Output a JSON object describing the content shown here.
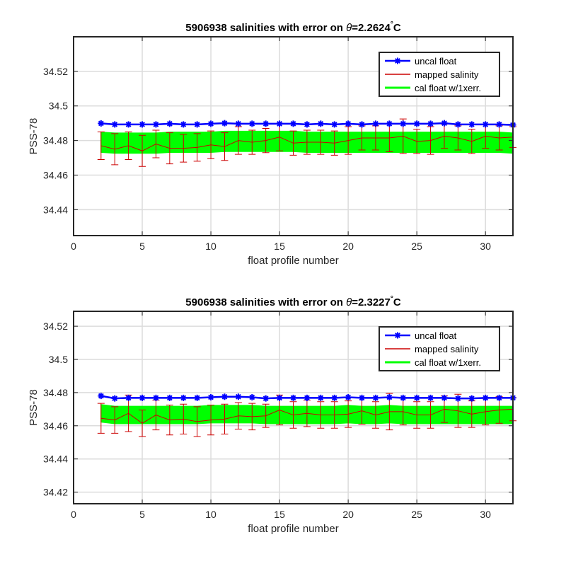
{
  "colors": {
    "uncal": "#0000ff",
    "mapped": "#cc0000",
    "calband": "#00ff00",
    "grid": "#dcdcdc",
    "axis": "#262626"
  },
  "chart_data": [
    {
      "type": "line",
      "title_prefix": "5906938 salinities with error on ",
      "title_theta": "θ",
      "title_value": "=2.2624",
      "title_unit": "C",
      "xlabel": "float profile number",
      "ylabel": "PSS-78",
      "xlim": [
        0,
        32
      ],
      "ylim": [
        34.425,
        34.54
      ],
      "xticks": [
        0,
        5,
        10,
        15,
        20,
        25,
        30
      ],
      "xtick_labels": [
        "0",
        "5",
        "10",
        "15",
        "20",
        "25",
        "30"
      ],
      "yticks": [
        34.44,
        34.46,
        34.48,
        34.5,
        34.52
      ],
      "ytick_labels": [
        "34.44",
        "34.46",
        "34.48",
        "34.5",
        "34.52"
      ],
      "grid": true,
      "legend_position": "top-right",
      "legend": [
        "uncal float",
        "mapped salinity",
        "cal float w/1xerr."
      ],
      "x": [
        2,
        3,
        4,
        5,
        6,
        7,
        8,
        9,
        10,
        11,
        12,
        13,
        14,
        15,
        16,
        17,
        18,
        19,
        20,
        21,
        22,
        23,
        24,
        25,
        26,
        27,
        28,
        29,
        30,
        31,
        32
      ],
      "series": [
        {
          "name": "uncal float",
          "values": [
            34.4899,
            34.4893,
            34.4893,
            34.4893,
            34.4893,
            34.4897,
            34.4893,
            34.4893,
            34.4897,
            34.49,
            34.4897,
            34.4897,
            34.4897,
            34.4897,
            34.4897,
            34.4893,
            34.4897,
            34.4893,
            34.4897,
            34.4893,
            34.4897,
            34.4897,
            34.4897,
            34.4897,
            34.4897,
            34.49,
            34.4893,
            34.4893,
            34.4893,
            34.4893,
            34.489
          ]
        },
        {
          "name": "mapped salinity",
          "values": [
            34.477,
            34.475,
            34.477,
            34.474,
            34.478,
            34.4755,
            34.4755,
            34.476,
            34.4775,
            34.4765,
            34.48,
            34.479,
            34.48,
            34.482,
            34.4785,
            34.479,
            34.479,
            34.4785,
            34.48,
            34.4815,
            34.4815,
            34.4815,
            34.4825,
            34.4795,
            34.48,
            34.4825,
            34.4815,
            34.4795,
            34.4825,
            34.4815,
            34.482
          ],
          "error": [
            0.008,
            0.009,
            0.008,
            0.009,
            0.008,
            0.009,
            0.008,
            0.008,
            0.008,
            0.008,
            0.008,
            0.007,
            0.007,
            0.008,
            0.007,
            0.007,
            0.007,
            0.007,
            0.008,
            0.007,
            0.007,
            0.008,
            0.01,
            0.007,
            0.008,
            0.007,
            0.007,
            0.007,
            0.007,
            0.007,
            0.006
          ]
        },
        {
          "name": "cal float w/1xerr.",
          "values": [
            34.479,
            34.4785,
            34.4785,
            34.4785,
            34.4785,
            34.479,
            34.479,
            34.479,
            34.479,
            34.4795,
            34.4795,
            34.4795,
            34.4795,
            34.4795,
            34.4795,
            34.479,
            34.479,
            34.479,
            34.479,
            34.479,
            34.479,
            34.479,
            34.479,
            34.479,
            34.479,
            34.479,
            34.479,
            34.479,
            34.479,
            34.479,
            34.4785
          ],
          "error": [
            0.0058,
            0.0058,
            0.0058,
            0.0058,
            0.0058,
            0.0058,
            0.0058,
            0.0058,
            0.0058,
            0.0058,
            0.0058,
            0.0058,
            0.0058,
            0.0058,
            0.0058,
            0.0058,
            0.0058,
            0.0058,
            0.0058,
            0.0058,
            0.0058,
            0.0058,
            0.0058,
            0.0058,
            0.0058,
            0.0058,
            0.0058,
            0.0058,
            0.0058,
            0.0058,
            0.0058
          ]
        }
      ]
    },
    {
      "type": "line",
      "title_prefix": "5906938 salinities with error on ",
      "title_theta": "θ",
      "title_value": "=2.3227",
      "title_unit": "C",
      "xlabel": "float profile number",
      "ylabel": "PSS-78",
      "xlim": [
        0,
        32
      ],
      "ylim": [
        34.413,
        34.529
      ],
      "xticks": [
        0,
        5,
        10,
        15,
        20,
        25,
        30
      ],
      "xtick_labels": [
        "0",
        "5",
        "10",
        "15",
        "20",
        "25",
        "30"
      ],
      "yticks": [
        34.42,
        34.44,
        34.46,
        34.48,
        34.5,
        34.52
      ],
      "ytick_labels": [
        "34.42",
        "34.44",
        "34.46",
        "34.48",
        "34.5",
        "34.52"
      ],
      "grid": true,
      "legend_position": "top-right",
      "legend": [
        "uncal float",
        "mapped salinity",
        "cal float w/1xerr."
      ],
      "x": [
        2,
        3,
        4,
        5,
        6,
        7,
        8,
        9,
        10,
        11,
        12,
        13,
        14,
        15,
        16,
        17,
        18,
        19,
        20,
        21,
        22,
        23,
        24,
        25,
        26,
        27,
        28,
        29,
        30,
        31,
        32
      ],
      "series": [
        {
          "name": "uncal float",
          "values": [
            34.478,
            34.4765,
            34.4768,
            34.4768,
            34.4768,
            34.4768,
            34.4768,
            34.4768,
            34.4772,
            34.4775,
            34.4775,
            34.4772,
            34.4765,
            34.4768,
            34.4768,
            34.4768,
            34.4768,
            34.4768,
            34.4772,
            34.4768,
            34.4768,
            34.4772,
            34.4768,
            34.4768,
            34.4768,
            34.4768,
            34.4765,
            34.4765,
            34.4768,
            34.4768,
            34.4768
          ]
        },
        {
          "name": "mapped salinity",
          "values": [
            34.4645,
            34.4635,
            34.4675,
            34.4615,
            34.4665,
            34.4635,
            34.464,
            34.4625,
            34.4635,
            34.464,
            34.466,
            34.4655,
            34.466,
            34.4695,
            34.4665,
            34.4675,
            34.4665,
            34.4665,
            34.467,
            34.469,
            34.4665,
            34.4685,
            34.4685,
            34.4665,
            34.4665,
            34.47,
            34.469,
            34.467,
            34.4685,
            34.4695,
            34.47
          ],
          "error": [
            0.009,
            0.008,
            0.011,
            0.008,
            0.009,
            0.009,
            0.009,
            0.009,
            0.009,
            0.009,
            0.008,
            0.008,
            0.007,
            0.009,
            0.008,
            0.008,
            0.008,
            0.008,
            0.008,
            0.008,
            0.008,
            0.011,
            0.008,
            0.008,
            0.008,
            0.008,
            0.01,
            0.008,
            0.008,
            0.008,
            0.007
          ]
        },
        {
          "name": "cal float w/1xerr.",
          "values": [
            34.4675,
            34.4665,
            34.4665,
            34.4665,
            34.4665,
            34.4665,
            34.4665,
            34.4665,
            34.467,
            34.467,
            34.467,
            34.467,
            34.4665,
            34.4665,
            34.4665,
            34.4665,
            34.4665,
            34.4665,
            34.467,
            34.4665,
            34.4665,
            34.467,
            34.4665,
            34.4665,
            34.4665,
            34.4665,
            34.4665,
            34.4665,
            34.4665,
            34.4665,
            34.4665
          ],
          "error": [
            0.0052,
            0.0052,
            0.0052,
            0.0052,
            0.0052,
            0.0052,
            0.0052,
            0.0052,
            0.0052,
            0.0052,
            0.0052,
            0.0052,
            0.0052,
            0.0052,
            0.0052,
            0.0052,
            0.0052,
            0.0052,
            0.0052,
            0.0052,
            0.0052,
            0.0052,
            0.0052,
            0.0052,
            0.0052,
            0.0052,
            0.0052,
            0.0052,
            0.0052,
            0.0052,
            0.0052
          ]
        }
      ]
    }
  ]
}
